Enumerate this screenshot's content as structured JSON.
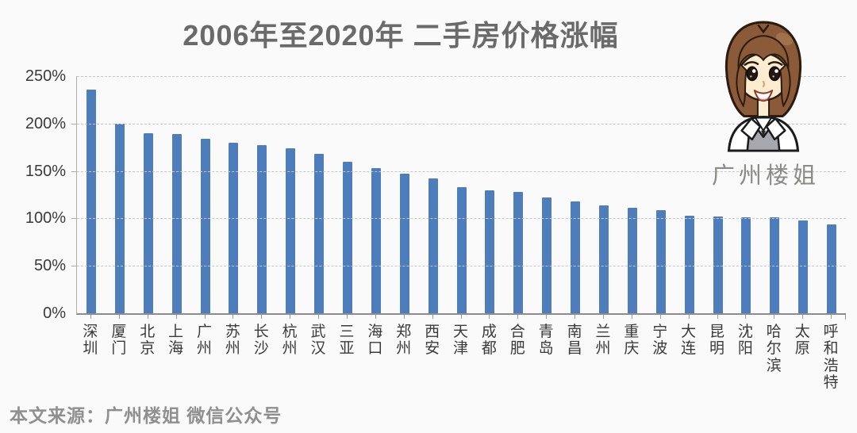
{
  "title": "2006年至2020年 二手房价格涨幅",
  "watermark": {
    "label": "广州楼姐"
  },
  "source_note": "本文来源：广州楼姐 微信公众号",
  "colors": {
    "bar": "#4d7dbb",
    "grid": "#c7c7c7",
    "title": "#6a6a6a",
    "source": "#8f8f8f"
  },
  "chart_data": {
    "type": "bar",
    "title": "2006年至2020年 二手房价格涨幅",
    "unit": "%",
    "categories": [
      "深圳",
      "厦门",
      "北京",
      "上海",
      "广州",
      "苏州",
      "长沙",
      "杭州",
      "武汉",
      "三亚",
      "海口",
      "郑州",
      "西安",
      "天津",
      "成都",
      "合肥",
      "青岛",
      "南昌",
      "兰州",
      "重庆",
      "宁波",
      "大连",
      "昆明",
      "沈阳",
      "哈尔滨",
      "太原",
      "呼和浩特"
    ],
    "values": [
      236,
      200,
      190,
      189,
      184,
      180,
      177,
      174,
      168,
      160,
      153,
      147,
      142,
      133,
      130,
      128,
      122,
      118,
      114,
      111,
      109,
      103,
      102,
      101,
      101,
      98,
      94
    ],
    "ylim": [
      0,
      250
    ],
    "yticks": [
      {
        "value": 0,
        "label": "0%"
      },
      {
        "value": 50,
        "label": "50%"
      },
      {
        "value": 100,
        "label": "100%"
      },
      {
        "value": 150,
        "label": "150%"
      },
      {
        "value": 200,
        "label": "200%"
      },
      {
        "value": 250,
        "label": "250%"
      }
    ],
    "grid": "horizontal-dashed",
    "xlabel": "",
    "ylabel": ""
  }
}
